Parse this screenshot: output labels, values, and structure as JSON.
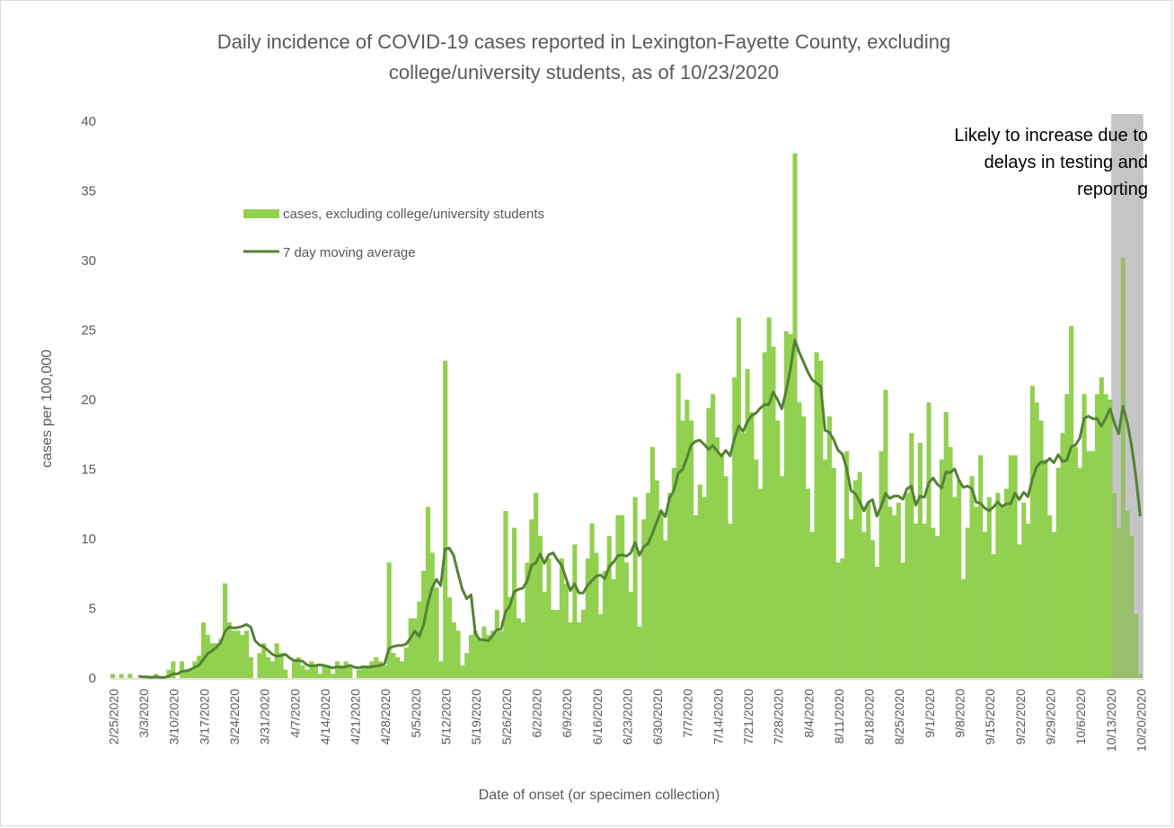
{
  "chart_data": {
    "type": "bar",
    "title": "Daily incidence of COVID-19 cases reported in Lexington-Fayette County, excluding college/university students, as of 10/23/2020",
    "title_lines": [
      "Daily incidence of COVID-19 cases reported in Lexington-Fayette County, excluding",
      "college/university students, as of 10/23/2020"
    ],
    "xlabel": "Date of onset (or specimen collection)",
    "ylabel": "cases per 100,000",
    "ylim": [
      0,
      40
    ],
    "yticks": [
      0,
      5,
      10,
      15,
      20,
      25,
      30,
      35,
      40
    ],
    "grid": false,
    "start_date": "2/25/2020",
    "end_date": "10/23/2020",
    "xtick_labels": [
      "2/25/2020",
      "3/3/2020",
      "3/10/2020",
      "3/17/2020",
      "3/24/2020",
      "3/31/2020",
      "4/7/2020",
      "4/14/2020",
      "4/21/2020",
      "4/28/2020",
      "5/5/2020",
      "5/12/2020",
      "5/19/2020",
      "5/26/2020",
      "6/2/2020",
      "6/9/2020",
      "6/16/2020",
      "6/23/2020",
      "6/30/2020",
      "7/7/2020",
      "7/14/2020",
      "7/21/2020",
      "7/28/2020",
      "8/4/2020",
      "8/11/2020",
      "8/18/2020",
      "8/25/2020",
      "9/1/2020",
      "9/8/2020",
      "9/15/2020",
      "9/22/2020",
      "9/29/2020",
      "10/6/2020",
      "10/13/2020",
      "10/20/2020"
    ],
    "xtick_interval_days": 7,
    "legend": {
      "placement": "top-left",
      "entries": [
        {
          "label": "cases, excluding college/university students",
          "kind": "bar",
          "color": "#92d050"
        },
        {
          "label": "7 day moving average",
          "kind": "line",
          "color": "#548235"
        }
      ]
    },
    "annotation": {
      "text_lines": [
        "Likely to increase due to",
        "delays in testing and",
        "reporting"
      ],
      "shaded_from": "10/14/2020",
      "shaded_to": "10/23/2020",
      "shade_color": "#d9d9d9"
    },
    "series": [
      {
        "name": "cases, excluding college/university students",
        "type": "bar",
        "color": "#92d050",
        "values": [
          0.3,
          0,
          0.3,
          0,
          0.3,
          0,
          0,
          0,
          0,
          0,
          0.3,
          0,
          0,
          0.6,
          1.2,
          0,
          1.2,
          0.6,
          0.6,
          1.2,
          1.6,
          4.0,
          3.1,
          2.5,
          2.5,
          2.8,
          6.8,
          4.0,
          3.4,
          3.4,
          3.1,
          3.4,
          1.5,
          0,
          1.8,
          2.5,
          1.5,
          1.2,
          2.5,
          1.8,
          0.6,
          0,
          1.2,
          1.5,
          0.9,
          0.6,
          1.2,
          0.9,
          0.3,
          0.9,
          0.9,
          0.3,
          1.2,
          0.9,
          1.2,
          0.9,
          0,
          0.6,
          0.9,
          0.9,
          1.2,
          1.5,
          1.2,
          0.9,
          8.3,
          1.8,
          1.5,
          1.2,
          2.2,
          4.3,
          4.3,
          5.5,
          7.7,
          12.3,
          9.0,
          6.5,
          1.2,
          22.8,
          5.8,
          4.0,
          3.4,
          0.9,
          1.8,
          3.1,
          3.4,
          2.8,
          3.7,
          3.1,
          3.4,
          4.9,
          3.4,
          12.0,
          5.8,
          10.8,
          4.3,
          4.0,
          8.3,
          11.4,
          13.3,
          10.2,
          6.2,
          8.6,
          4.9,
          4.9,
          8.6,
          6.8,
          4.0,
          9.6,
          4.0,
          4.9,
          8.6,
          11.1,
          9.0,
          4.6,
          7.7,
          10.2,
          7.1,
          11.7,
          11.7,
          8.3,
          6.2,
          13.0,
          3.7,
          11.4,
          13.3,
          16.6,
          14.2,
          12.0,
          9.9,
          13.3,
          15.1,
          21.9,
          18.5,
          20.0,
          18.5,
          11.7,
          13.9,
          13.0,
          19.4,
          20.4,
          17.3,
          16.0,
          14.5,
          11.1,
          21.6,
          25.9,
          17.6,
          22.2,
          19.1,
          15.7,
          13.6,
          23.4,
          25.9,
          23.8,
          18.5,
          14.5,
          24.9,
          24.7,
          37.7,
          19.8,
          18.8,
          13.6,
          10.5,
          23.4,
          22.8,
          15.7,
          18.8,
          15.1,
          8.3,
          8.6,
          16.3,
          11.4,
          14.2,
          14.8,
          10.5,
          12.6,
          9.9,
          8.0,
          16.3,
          20.7,
          12.3,
          11.7,
          12.6,
          8.3,
          13.3,
          17.6,
          11.1,
          16.9,
          11.1,
          19.8,
          10.8,
          10.2,
          15.7,
          19.1,
          16.6,
          13.0,
          14.2,
          7.1,
          10.8,
          14.5,
          12.3,
          16.0,
          10.5,
          13.0,
          8.9,
          13.3,
          12.3,
          13.6,
          16.0,
          16.0,
          9.6,
          12.6,
          11.1,
          21.0,
          19.8,
          18.5,
          15.7,
          11.7,
          10.5,
          15.1,
          17.6,
          20.4,
          25.3,
          16.6,
          15.1,
          20.4,
          16.3,
          16.3,
          20.4,
          21.6,
          20.4,
          20.0,
          13.3,
          10.8,
          30.2,
          12.0,
          10.2,
          4.6,
          0.3
        ]
      },
      {
        "name": "7 day moving average",
        "type": "line",
        "color": "#548235",
        "derived_from": "7-day trailing mean of daily cases"
      }
    ]
  }
}
